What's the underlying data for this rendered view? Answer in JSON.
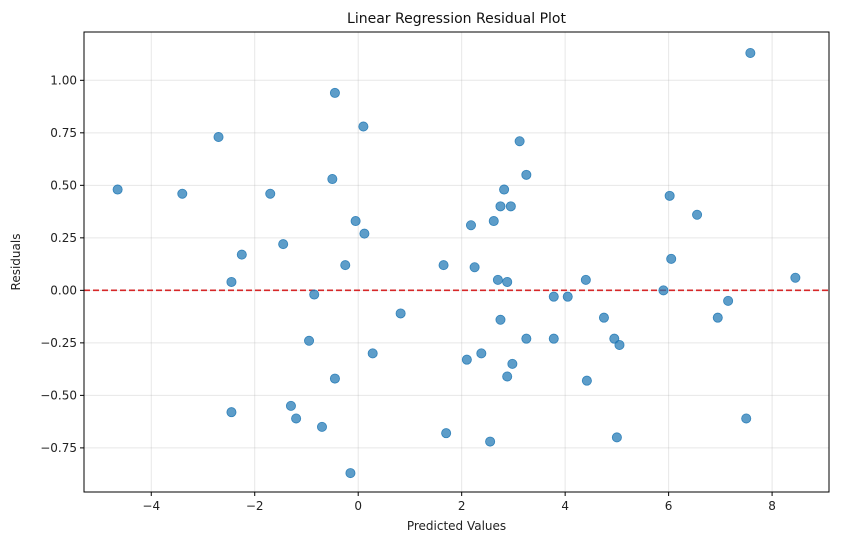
{
  "chart_data": {
    "type": "scatter",
    "title": "Linear Regression Residual Plot",
    "xlabel": "Predicted Values",
    "ylabel": "Residuals",
    "xlim": [
      -5.3,
      9.1
    ],
    "ylim": [
      -0.96,
      1.23
    ],
    "xticks": [
      -4,
      -2,
      0,
      2,
      4,
      6,
      8
    ],
    "yticks": [
      -0.75,
      -0.5,
      -0.25,
      0.0,
      0.25,
      0.5,
      0.75,
      1.0
    ],
    "xtick_labels": [
      "−4",
      "−2",
      "0",
      "2",
      "4",
      "6",
      "8"
    ],
    "ytick_labels": [
      "−0.75",
      "−0.50",
      "−0.25",
      "0.00",
      "0.25",
      "0.50",
      "0.75",
      "1.00"
    ],
    "grid": true,
    "reference_line": {
      "y": 0,
      "style": "dashed",
      "color": "#d62728"
    },
    "point_color": "#1f77b4",
    "points": [
      {
        "x": -4.65,
        "y": 0.48
      },
      {
        "x": -3.4,
        "y": 0.46
      },
      {
        "x": -2.7,
        "y": 0.73
      },
      {
        "x": -2.45,
        "y": 0.04
      },
      {
        "x": -2.45,
        "y": -0.58
      },
      {
        "x": -2.25,
        "y": 0.17
      },
      {
        "x": -1.7,
        "y": 0.46
      },
      {
        "x": -1.45,
        "y": 0.22
      },
      {
        "x": -1.3,
        "y": -0.55
      },
      {
        "x": -1.2,
        "y": -0.61
      },
      {
        "x": -0.95,
        "y": -0.24
      },
      {
        "x": -0.85,
        "y": -0.02
      },
      {
        "x": -0.7,
        "y": -0.65
      },
      {
        "x": -0.5,
        "y": 0.53
      },
      {
        "x": -0.45,
        "y": 0.94
      },
      {
        "x": -0.45,
        "y": -0.42
      },
      {
        "x": -0.25,
        "y": 0.12
      },
      {
        "x": -0.15,
        "y": -0.87
      },
      {
        "x": -0.05,
        "y": 0.33
      },
      {
        "x": 0.1,
        "y": 0.78
      },
      {
        "x": 0.12,
        "y": 0.27
      },
      {
        "x": 0.28,
        "y": -0.3
      },
      {
        "x": 0.82,
        "y": -0.11
      },
      {
        "x": 1.65,
        "y": 0.12
      },
      {
        "x": 1.7,
        "y": -0.68
      },
      {
        "x": 2.1,
        "y": -0.33
      },
      {
        "x": 2.18,
        "y": 0.31
      },
      {
        "x": 2.25,
        "y": 0.11
      },
      {
        "x": 2.38,
        "y": -0.3
      },
      {
        "x": 2.55,
        "y": -0.72
      },
      {
        "x": 2.62,
        "y": 0.33
      },
      {
        "x": 2.7,
        "y": 0.05
      },
      {
        "x": 2.75,
        "y": 0.4
      },
      {
        "x": 2.75,
        "y": -0.14
      },
      {
        "x": 2.82,
        "y": 0.48
      },
      {
        "x": 2.88,
        "y": 0.04
      },
      {
        "x": 2.88,
        "y": -0.41
      },
      {
        "x": 2.95,
        "y": 0.4
      },
      {
        "x": 2.98,
        "y": -0.35
      },
      {
        "x": 3.12,
        "y": 0.71
      },
      {
        "x": 3.25,
        "y": 0.55
      },
      {
        "x": 3.25,
        "y": -0.23
      },
      {
        "x": 3.78,
        "y": -0.03
      },
      {
        "x": 3.78,
        "y": -0.23
      },
      {
        "x": 4.05,
        "y": -0.03
      },
      {
        "x": 4.4,
        "y": 0.05
      },
      {
        "x": 4.42,
        "y": -0.43
      },
      {
        "x": 4.75,
        "y": -0.13
      },
      {
        "x": 4.95,
        "y": -0.23
      },
      {
        "x": 5.0,
        "y": -0.7
      },
      {
        "x": 5.05,
        "y": -0.26
      },
      {
        "x": 5.9,
        "y": 0.0
      },
      {
        "x": 6.02,
        "y": 0.45
      },
      {
        "x": 6.05,
        "y": 0.15
      },
      {
        "x": 6.55,
        "y": 0.36
      },
      {
        "x": 6.95,
        "y": -0.13
      },
      {
        "x": 7.15,
        "y": -0.05
      },
      {
        "x": 7.5,
        "y": -0.61
      },
      {
        "x": 7.58,
        "y": 1.13
      },
      {
        "x": 8.45,
        "y": 0.06
      }
    ]
  }
}
